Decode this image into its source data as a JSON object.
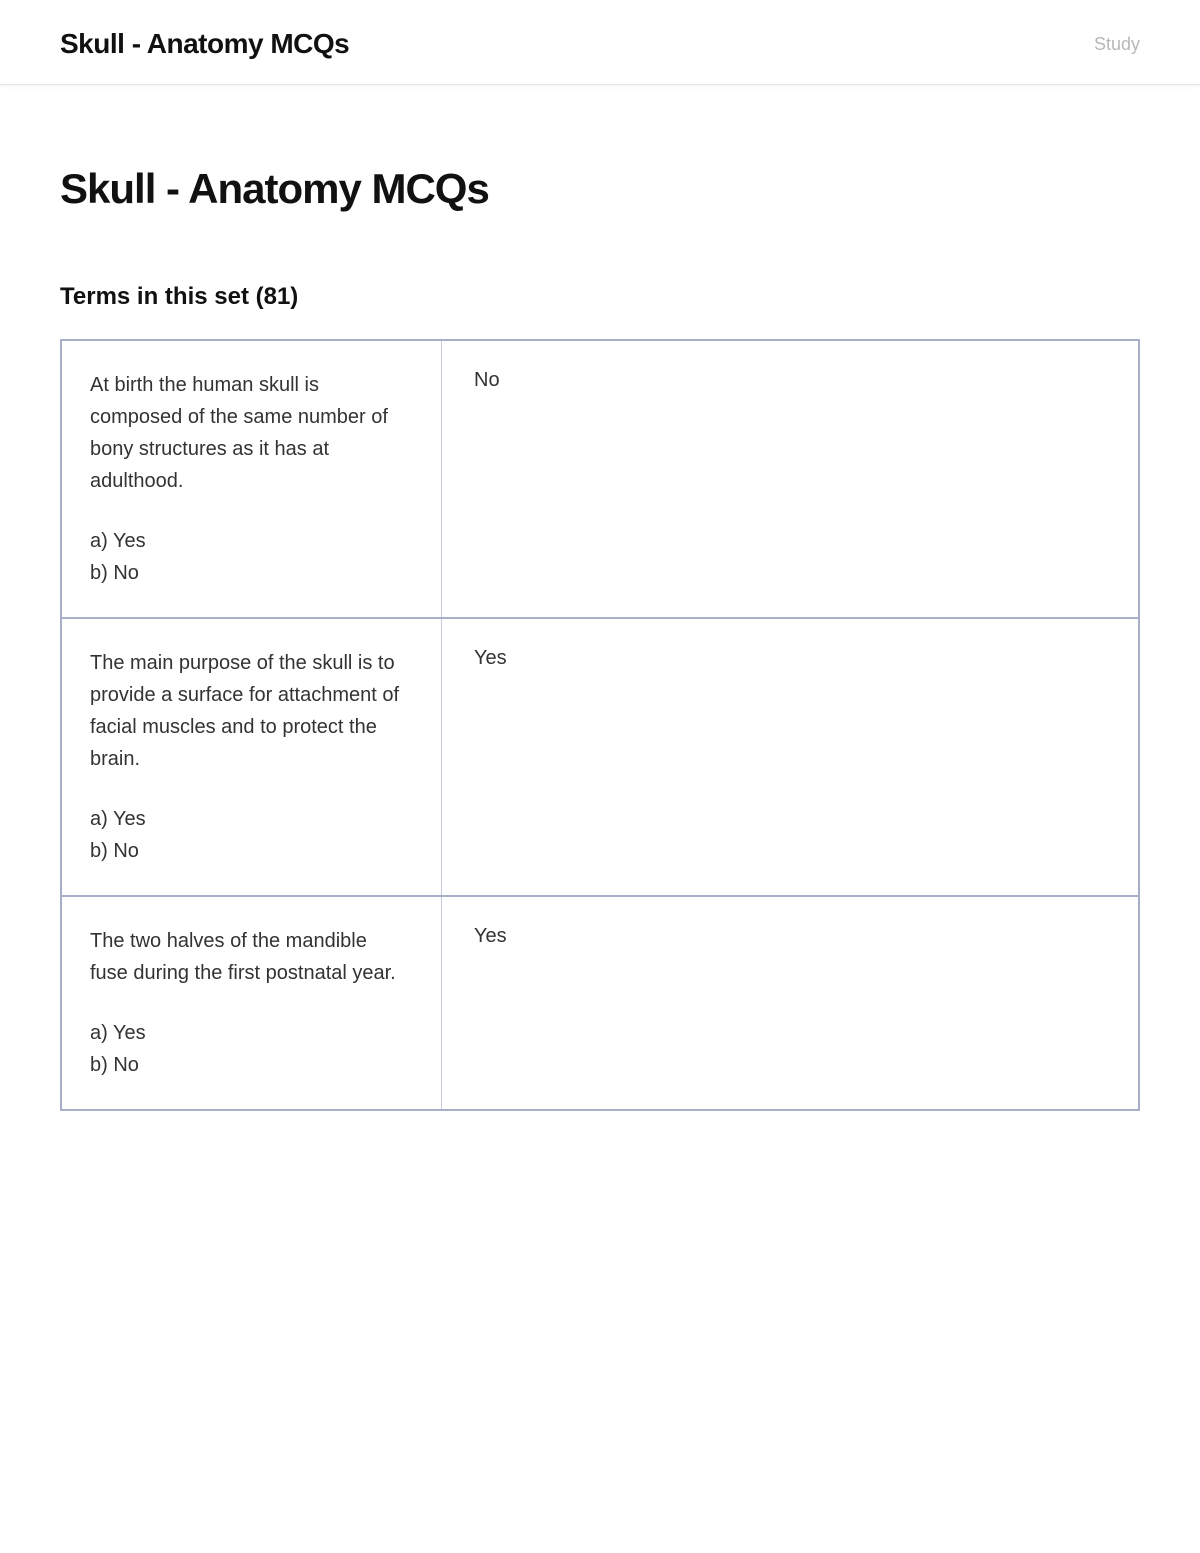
{
  "header": {
    "title": "Skull - Anatomy MCQs",
    "nav_label": "Study"
  },
  "page": {
    "title": "Skull - Anatomy MCQs",
    "terms_heading": "Terms in this set (81)"
  },
  "cards": [
    {
      "stem": "At birth the human skull is composed of the same number of bony structures as it has at adulthood.",
      "option_a": "a) Yes",
      "option_b": "b) No",
      "answer": "No"
    },
    {
      "stem": "The main purpose of the skull is to provide a surface for attachment of facial muscles and to protect the brain.",
      "option_a": "a) Yes",
      "option_b": "b) No",
      "answer": "Yes"
    },
    {
      "stem": "The two halves of the mandible fuse during the first postnatal year.",
      "option_a": "a) Yes",
      "option_b": "b) No",
      "answer": "Yes"
    }
  ],
  "colors": {
    "card_border": "#a9aec9",
    "divider": "#c7cadd",
    "text": "#2a2a2a",
    "muted": "#b8b8b8",
    "background": "#ffffff"
  }
}
